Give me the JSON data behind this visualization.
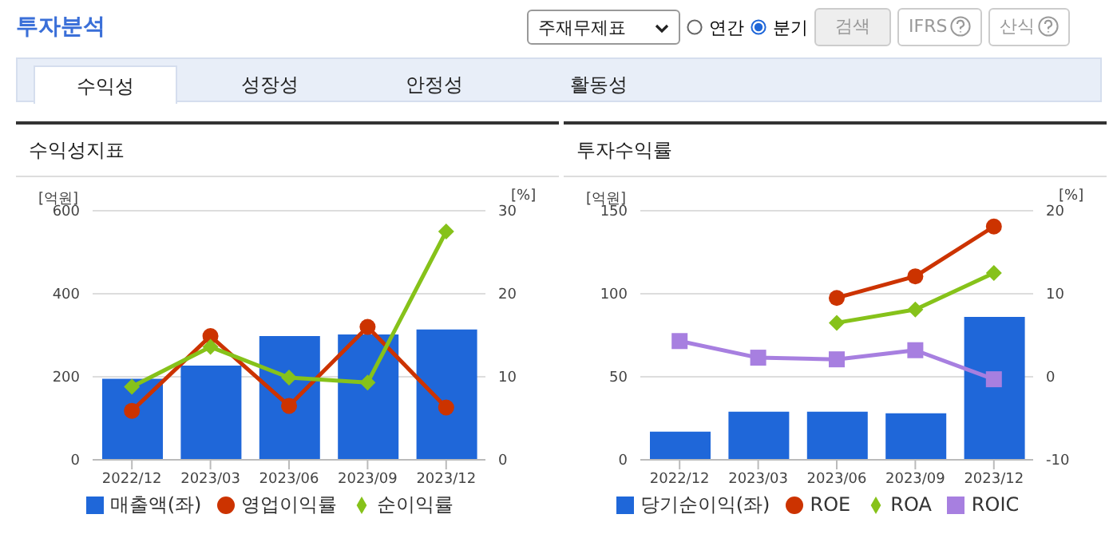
{
  "chart_data": [
    {
      "type": "bar",
      "title": "수익성지표",
      "ylabel": "[억원]",
      "y2label": "[%]",
      "annotations": [
        "투자분석",
        "주재무제표",
        "연간",
        "분기",
        "검색",
        "IFRS",
        "산식",
        "수익성",
        "성장성",
        "안정성",
        "활동성"
      ],
      "categories": [
        "2022/12",
        "2023/03",
        "2023/06",
        "2023/09",
        "2023/12"
      ],
      "series": [
        {
          "name": "매출액(좌)",
          "color": "#1f67d9",
          "values": [
            195,
            227,
            298,
            302,
            314
          ]
        },
        {
          "name": "영업이익률",
          "type": "line",
          "axis": "y2",
          "marker": "circle",
          "color": "#cc3300",
          "values": [
            5.9,
            14.9,
            6.5,
            16.0,
            6.3
          ]
        },
        {
          "name": "순이익률",
          "type": "line",
          "axis": "y2",
          "marker": "diamond",
          "color": "#86c21a",
          "values": [
            8.8,
            13.6,
            9.9,
            9.3,
            27.5
          ]
        }
      ],
      "ylim": [
        0,
        600
      ],
      "yticks": [
        0,
        200,
        400,
        600
      ],
      "y2lim": [
        0,
        30
      ],
      "y2ticks": [
        0,
        10,
        20,
        30
      ],
      "grid": "y",
      "legend": "bottom"
    },
    {
      "type": "bar",
      "title": "투자수익률",
      "ylabel": "[억원]",
      "y2label": "[%]",
      "categories": [
        "2022/12",
        "2023/03",
        "2023/06",
        "2023/09",
        "2023/12"
      ],
      "series": [
        {
          "name": "당기순이익(좌)",
          "color": "#1f67d9",
          "values": [
            17,
            29,
            29,
            28,
            86
          ]
        },
        {
          "name": "ROE",
          "type": "line",
          "axis": "y2",
          "marker": "circle",
          "color": "#cc3300",
          "values": [
            null,
            null,
            9.5,
            12.1,
            18.1
          ]
        },
        {
          "name": "ROA",
          "type": "line",
          "axis": "y2",
          "marker": "diamond",
          "color": "#86c21a",
          "values": [
            null,
            null,
            6.5,
            8.1,
            12.5
          ]
        },
        {
          "name": "ROIC",
          "type": "line",
          "axis": "y2",
          "marker": "square",
          "color": "#a77fe0",
          "values": [
            4.3,
            2.3,
            2.1,
            3.2,
            -0.3
          ]
        }
      ],
      "ylim": [
        0,
        150
      ],
      "yticks": [
        0,
        50,
        100,
        150
      ],
      "y2lim": [
        -10,
        20
      ],
      "y2ticks": [
        -10,
        0,
        10,
        20
      ],
      "grid": "y",
      "legend": "bottom"
    }
  ]
}
